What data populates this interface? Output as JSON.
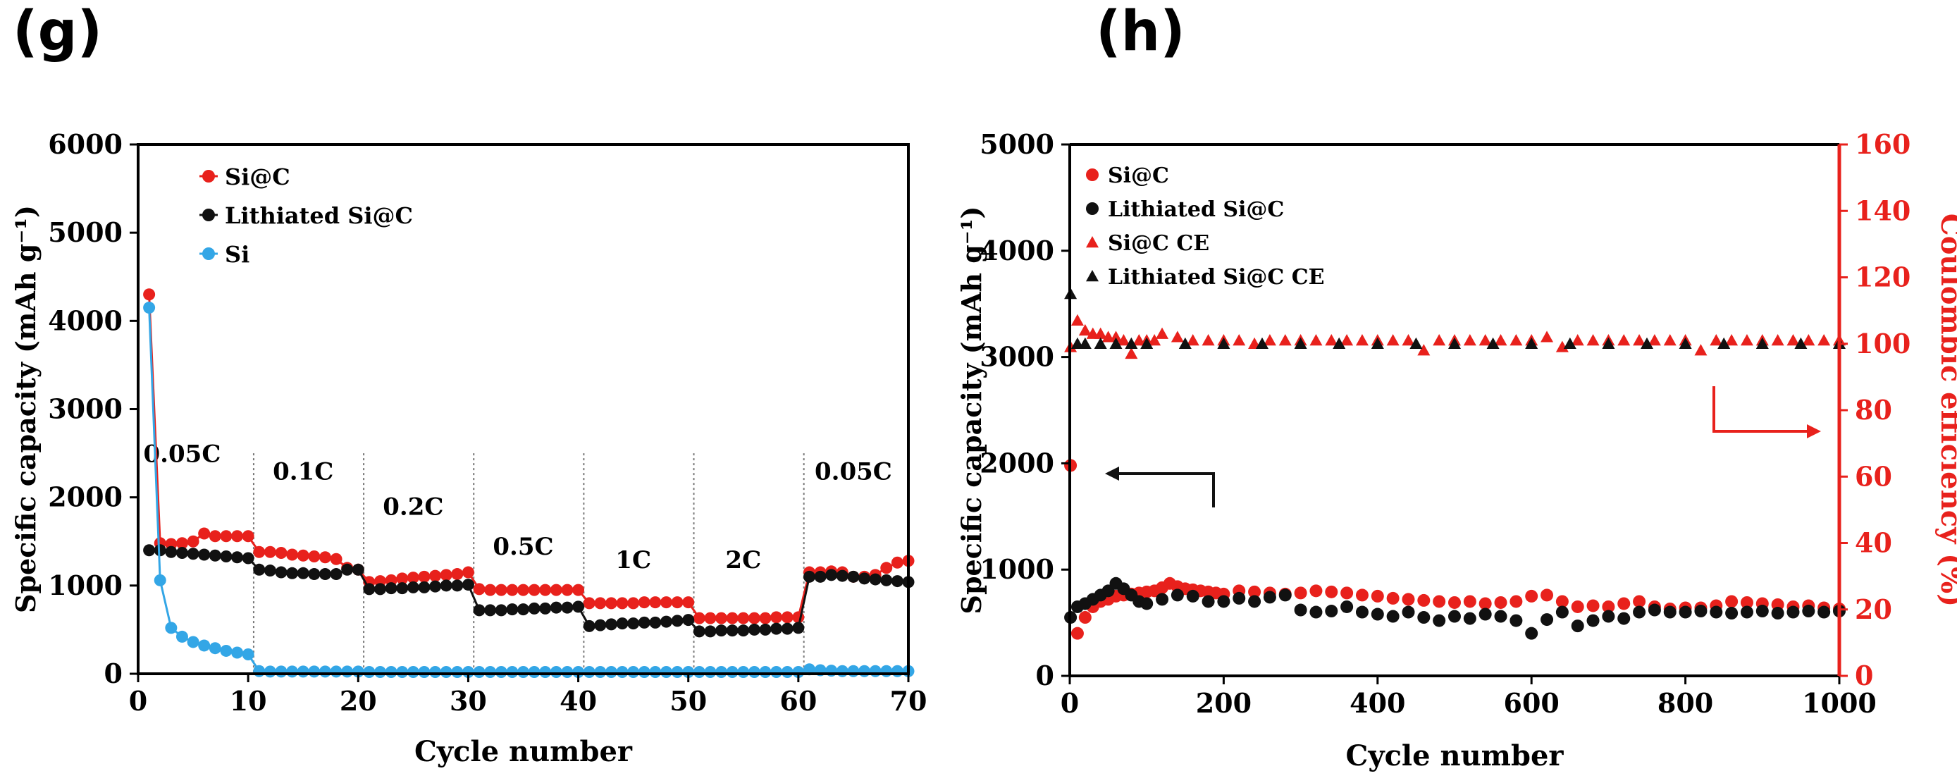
{
  "colors": {
    "red": "#e8211c",
    "black": "#111111",
    "blue": "#33a6e6",
    "axis": "#000000",
    "divider": "#777777"
  },
  "chart_data": [
    {
      "panel_label": "(g)",
      "type": "scatter-line",
      "title": "",
      "xlabel": "Cycle number",
      "ylabel": "Specific capacity (mAh g⁻¹)",
      "xlim": [
        0,
        70
      ],
      "ylim": [
        0,
        6000
      ],
      "xticks": [
        0,
        10,
        20,
        30,
        40,
        50,
        60,
        70
      ],
      "yticks": [
        0,
        1000,
        2000,
        3000,
        4000,
        5000,
        6000
      ],
      "legend": "top-left",
      "rate_dividers": [
        10.5,
        20.5,
        30.5,
        40.5,
        50.5,
        60.5
      ],
      "rate_labels": [
        {
          "text": "0.05C",
          "x": 4,
          "y": 2400
        },
        {
          "text": "0.1C",
          "x": 15,
          "y": 2200
        },
        {
          "text": "0.2C",
          "x": 25,
          "y": 1800
        },
        {
          "text": "0.5C",
          "x": 35,
          "y": 1350
        },
        {
          "text": "1C",
          "x": 45,
          "y": 1200
        },
        {
          "text": "2C",
          "x": 55,
          "y": 1200
        },
        {
          "text": "0.05C",
          "x": 65,
          "y": 2200
        }
      ],
      "series": [
        {
          "name": "Si@C",
          "color": "#e8211c",
          "x": [
            1,
            2,
            3,
            4,
            5,
            6,
            7,
            8,
            9,
            10,
            11,
            12,
            13,
            14,
            15,
            16,
            17,
            18,
            19,
            20,
            21,
            22,
            23,
            24,
            25,
            26,
            27,
            28,
            29,
            30,
            31,
            32,
            33,
            34,
            35,
            36,
            37,
            38,
            39,
            40,
            41,
            42,
            43,
            44,
            45,
            46,
            47,
            48,
            49,
            50,
            51,
            52,
            53,
            54,
            55,
            56,
            57,
            58,
            59,
            60,
            61,
            62,
            63,
            64,
            65,
            66,
            67,
            68,
            69,
            70
          ],
          "values": [
            4300,
            1480,
            1470,
            1480,
            1500,
            1590,
            1560,
            1560,
            1560,
            1560,
            1380,
            1380,
            1370,
            1350,
            1340,
            1330,
            1320,
            1300,
            1200,
            1180,
            1040,
            1050,
            1060,
            1080,
            1090,
            1100,
            1110,
            1120,
            1130,
            1150,
            960,
            950,
            950,
            950,
            950,
            950,
            950,
            950,
            950,
            950,
            800,
            800,
            800,
            800,
            800,
            810,
            810,
            810,
            810,
            810,
            630,
            630,
            630,
            630,
            630,
            630,
            630,
            640,
            640,
            640,
            1150,
            1150,
            1160,
            1150,
            1100,
            1100,
            1120,
            1200,
            1260,
            1280
          ]
        },
        {
          "name": "Lithiated Si@C",
          "color": "#111111",
          "x": [
            1,
            2,
            3,
            4,
            5,
            6,
            7,
            8,
            9,
            10,
            11,
            12,
            13,
            14,
            15,
            16,
            17,
            18,
            19,
            20,
            21,
            22,
            23,
            24,
            25,
            26,
            27,
            28,
            29,
            30,
            31,
            32,
            33,
            34,
            35,
            36,
            37,
            38,
            39,
            40,
            41,
            42,
            43,
            44,
            45,
            46,
            47,
            48,
            49,
            50,
            51,
            52,
            53,
            54,
            55,
            56,
            57,
            58,
            59,
            60,
            61,
            62,
            63,
            64,
            65,
            66,
            67,
            68,
            69,
            70
          ],
          "values": [
            1400,
            1400,
            1380,
            1370,
            1360,
            1350,
            1340,
            1330,
            1320,
            1310,
            1180,
            1170,
            1150,
            1140,
            1140,
            1130,
            1130,
            1130,
            1180,
            1180,
            960,
            960,
            970,
            970,
            980,
            980,
            990,
            1000,
            1000,
            1010,
            720,
            720,
            720,
            730,
            730,
            740,
            740,
            750,
            750,
            760,
            540,
            550,
            560,
            570,
            570,
            580,
            580,
            590,
            600,
            610,
            480,
            480,
            490,
            490,
            490,
            500,
            500,
            510,
            510,
            520,
            1100,
            1100,
            1120,
            1110,
            1100,
            1080,
            1070,
            1060,
            1050,
            1040
          ]
        },
        {
          "name": "Si",
          "color": "#33a6e6",
          "x": [
            1,
            2,
            3,
            4,
            5,
            6,
            7,
            8,
            9,
            10,
            11,
            12,
            13,
            14,
            15,
            16,
            17,
            18,
            19,
            20,
            21,
            22,
            23,
            24,
            25,
            26,
            27,
            28,
            29,
            30,
            31,
            32,
            33,
            34,
            35,
            36,
            37,
            38,
            39,
            40,
            41,
            42,
            43,
            44,
            45,
            46,
            47,
            48,
            49,
            50,
            51,
            52,
            53,
            54,
            55,
            56,
            57,
            58,
            59,
            60,
            61,
            62,
            63,
            64,
            65,
            66,
            67,
            68,
            69,
            70
          ],
          "values": [
            4150,
            1060,
            520,
            420,
            360,
            320,
            290,
            260,
            240,
            220,
            30,
            25,
            25,
            25,
            25,
            25,
            25,
            25,
            25,
            25,
            20,
            20,
            20,
            20,
            20,
            20,
            20,
            20,
            20,
            20,
            20,
            20,
            20,
            20,
            20,
            20,
            20,
            20,
            20,
            20,
            20,
            20,
            20,
            20,
            20,
            20,
            20,
            20,
            20,
            20,
            20,
            20,
            20,
            20,
            20,
            20,
            20,
            20,
            20,
            20,
            50,
            40,
            35,
            30,
            30,
            30,
            30,
            30,
            30,
            30
          ]
        }
      ]
    },
    {
      "panel_label": "(h)",
      "type": "scatter",
      "title": "",
      "xlabel": "Cycle number",
      "ylabel": "Specific capacity (mAh g⁻¹)",
      "y2label": "Coulombic efficiency (%)",
      "xlim": [
        0,
        1000
      ],
      "ylim": [
        0,
        5000
      ],
      "y2lim": [
        0,
        160
      ],
      "xticks": [
        0,
        200,
        400,
        600,
        800,
        1000
      ],
      "yticks": [
        0,
        1000,
        2000,
        3000,
        4000,
        5000
      ],
      "y2ticks": [
        0,
        20,
        40,
        60,
        80,
        100,
        120,
        140,
        160
      ],
      "legend": "top-left",
      "series": [
        {
          "name": "Si@C",
          "color": "#e8211c",
          "marker": "circle",
          "axis": "left",
          "x": [
            1,
            10,
            20,
            30,
            40,
            50,
            60,
            70,
            80,
            90,
            100,
            110,
            120,
            130,
            140,
            150,
            160,
            170,
            180,
            190,
            200,
            220,
            240,
            260,
            280,
            300,
            320,
            340,
            360,
            380,
            400,
            420,
            440,
            460,
            480,
            500,
            520,
            540,
            560,
            580,
            600,
            620,
            640,
            660,
            680,
            700,
            720,
            740,
            760,
            780,
            800,
            820,
            840,
            860,
            880,
            900,
            920,
            940,
            960,
            980,
            1000
          ],
          "values": [
            1980,
            400,
            550,
            650,
            700,
            720,
            750,
            760,
            770,
            780,
            790,
            800,
            830,
            870,
            840,
            820,
            810,
            800,
            790,
            780,
            770,
            800,
            790,
            780,
            770,
            780,
            800,
            790,
            780,
            760,
            750,
            730,
            720,
            710,
            700,
            690,
            700,
            680,
            690,
            700,
            750,
            760,
            700,
            650,
            660,
            650,
            680,
            700,
            650,
            630,
            640,
            640,
            660,
            700,
            690,
            680,
            670,
            650,
            660,
            640,
            630
          ]
        },
        {
          "name": "Lithiated Si@C",
          "color": "#111111",
          "marker": "circle",
          "axis": "left",
          "x": [
            1,
            10,
            20,
            30,
            40,
            50,
            60,
            70,
            80,
            90,
            100,
            120,
            140,
            160,
            180,
            200,
            220,
            240,
            260,
            280,
            300,
            320,
            340,
            360,
            380,
            400,
            420,
            440,
            460,
            480,
            500,
            520,
            540,
            560,
            580,
            600,
            620,
            640,
            660,
            680,
            700,
            720,
            740,
            760,
            780,
            800,
            820,
            840,
            860,
            880,
            900,
            920,
            940,
            960,
            980,
            1000
          ],
          "values": [
            550,
            650,
            680,
            720,
            760,
            800,
            870,
            820,
            760,
            700,
            680,
            720,
            760,
            750,
            700,
            700,
            730,
            700,
            740,
            760,
            620,
            600,
            610,
            650,
            600,
            580,
            560,
            600,
            550,
            520,
            560,
            540,
            580,
            560,
            520,
            400,
            530,
            600,
            470,
            520,
            560,
            540,
            600,
            620,
            600,
            600,
            610,
            600,
            590,
            600,
            610,
            590,
            600,
            610,
            600,
            610
          ]
        },
        {
          "name": "Si@C CE",
          "color": "#e8211c",
          "marker": "triangle",
          "axis": "right",
          "x": [
            1,
            10,
            20,
            30,
            40,
            50,
            60,
            70,
            80,
            90,
            100,
            110,
            120,
            140,
            160,
            180,
            200,
            220,
            240,
            260,
            280,
            300,
            320,
            340,
            360,
            380,
            400,
            420,
            440,
            460,
            480,
            500,
            520,
            540,
            560,
            580,
            600,
            620,
            640,
            660,
            680,
            700,
            720,
            740,
            760,
            780,
            800,
            820,
            840,
            860,
            880,
            900,
            920,
            940,
            960,
            980,
            1000
          ],
          "values": [
            99,
            107,
            104,
            103,
            103,
            102,
            102,
            101,
            97,
            101,
            101,
            101,
            103,
            102,
            101,
            101,
            101,
            101,
            100,
            101,
            101,
            101,
            101,
            101,
            101,
            101,
            101,
            101,
            101,
            98,
            101,
            101,
            101,
            101,
            101,
            101,
            101,
            102,
            99,
            101,
            101,
            101,
            101,
            101,
            101,
            101,
            101,
            98,
            101,
            101,
            101,
            101,
            101,
            101,
            101,
            101,
            101
          ]
        },
        {
          "name": "Lithiated Si@C CE",
          "color": "#111111",
          "marker": "triangle",
          "axis": "right",
          "x": [
            1,
            10,
            20,
            40,
            60,
            80,
            100,
            150,
            200,
            250,
            300,
            350,
            400,
            450,
            500,
            550,
            600,
            650,
            700,
            750,
            800,
            850,
            900,
            950,
            1000
          ],
          "values": [
            115,
            100,
            100,
            100,
            100,
            100,
            100,
            100,
            100,
            100,
            100,
            100,
            100,
            100,
            100,
            100,
            100,
            100,
            100,
            100,
            100,
            100,
            100,
            100,
            100
          ]
        }
      ]
    }
  ]
}
